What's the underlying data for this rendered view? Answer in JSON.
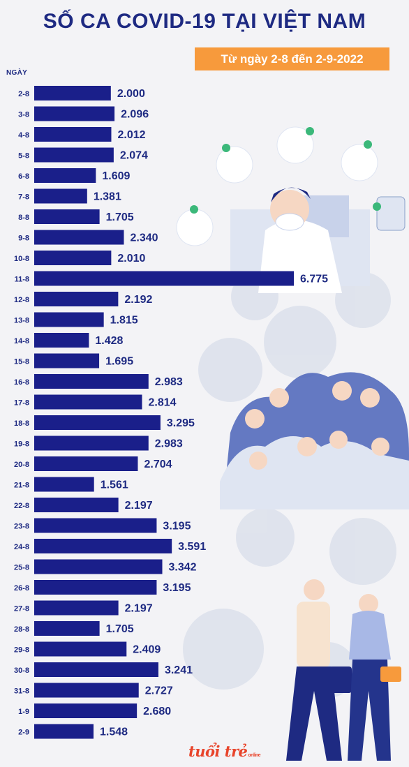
{
  "header": {
    "title": "SỐ CA COVID-19 TẠI VIỆT NAM",
    "date_range": "Từ ngày 2-8 đến 2-9-2022"
  },
  "colors": {
    "bar": "#1a1f8a",
    "title": "#1e2a82",
    "badge": "#f79a3c",
    "label": "#1e2a82"
  },
  "logo": {
    "text": "tuổi trẻ",
    "sub": "online"
  },
  "chart_data": {
    "type": "bar",
    "orientation": "horizontal",
    "ylabel": "NGÀY",
    "categories": [
      "2-8",
      "3-8",
      "4-8",
      "5-8",
      "6-8",
      "7-8",
      "8-8",
      "9-8",
      "10-8",
      "11-8",
      "12-8",
      "13-8",
      "14-8",
      "15-8",
      "16-8",
      "17-8",
      "18-8",
      "19-8",
      "20-8",
      "21-8",
      "22-8",
      "23-8",
      "24-8",
      "25-8",
      "26-8",
      "27-8",
      "28-8",
      "29-8",
      "30-8",
      "31-8",
      "1-9",
      "2-9"
    ],
    "values": [
      2000,
      2096,
      2012,
      2074,
      1609,
      1381,
      1705,
      2340,
      2010,
      6775,
      2192,
      1815,
      1428,
      1695,
      2983,
      2814,
      3295,
      2983,
      2704,
      1561,
      2197,
      3195,
      3591,
      3342,
      3195,
      2197,
      1705,
      2409,
      3241,
      2727,
      2680,
      1548
    ],
    "value_labels": [
      "2.000",
      "2.096",
      "2.012",
      "2.074",
      "1.609",
      "1.381",
      "1.705",
      "2.340",
      "2.010",
      "6.775",
      "2.192",
      "1.815",
      "1.428",
      "1.695",
      "2.983",
      "2.814",
      "3.295",
      "2.983",
      "2.704",
      "1.561",
      "2.197",
      "3.195",
      "3.591",
      "3.342",
      "3.195",
      "2.197",
      "1.705",
      "2.409",
      "3.241",
      "2.727",
      "2.680",
      "1.548"
    ],
    "grid": false,
    "legend": "none"
  }
}
